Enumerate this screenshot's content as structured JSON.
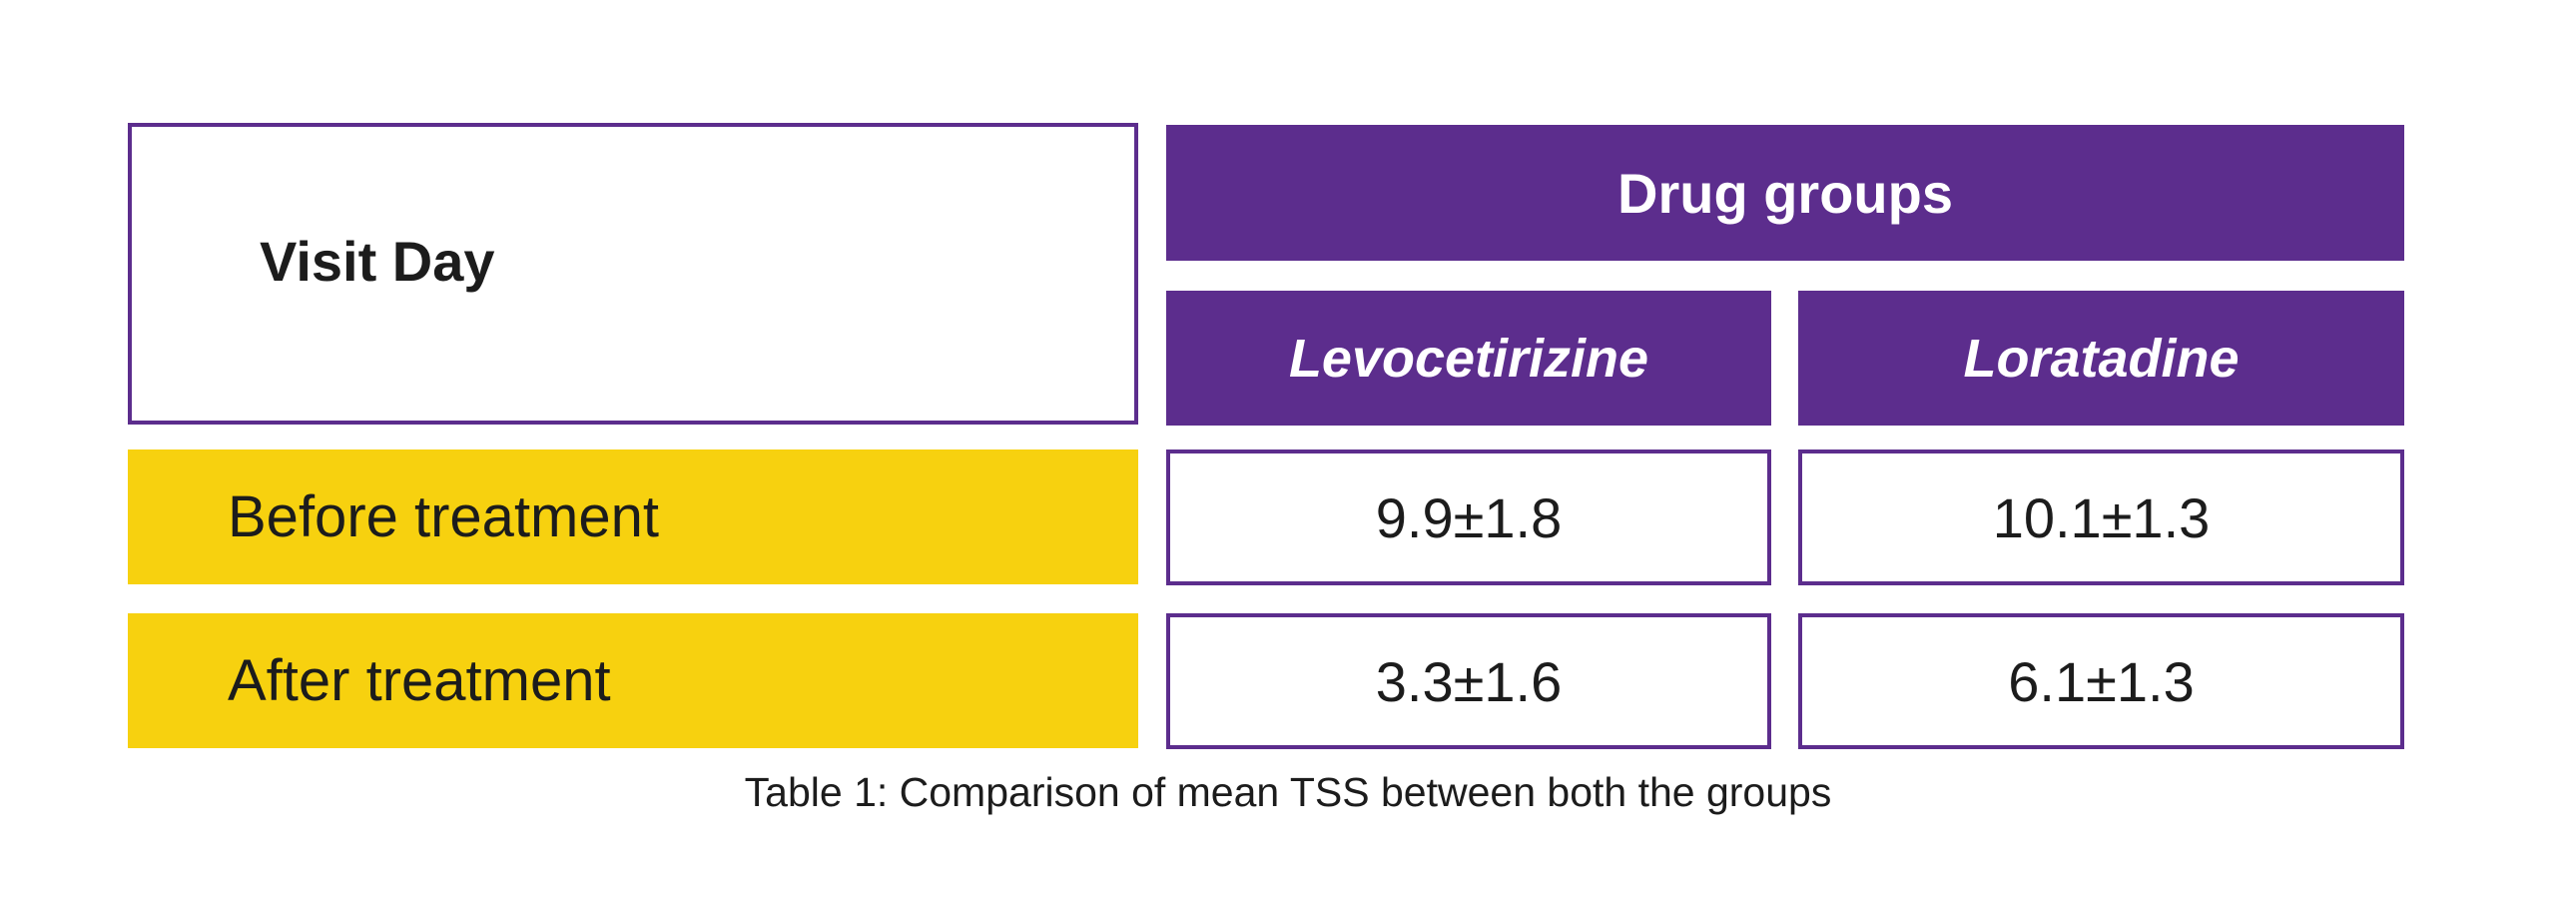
{
  "table": {
    "corner_header": "Visit Day",
    "group_header": "Drug groups",
    "columns": [
      "Levocetirizine",
      "Loratadine"
    ],
    "rows": [
      {
        "label": "Before treatment",
        "values": [
          "9.9±1.8",
          "10.1±1.3"
        ]
      },
      {
        "label": "After treatment",
        "values": [
          "3.3±1.6",
          "6.1±1.3"
        ]
      }
    ],
    "caption": "Table 1: Comparison of mean TSS between both the groups"
  },
  "colors": {
    "header_purple": "#5c2d8d",
    "row_label_yellow": "#f7d10f",
    "text_dark": "#1c1c1c"
  }
}
